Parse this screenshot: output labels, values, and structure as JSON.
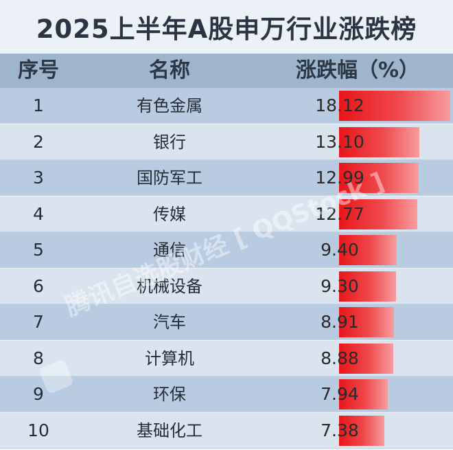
{
  "title": "2025上半年A股申万行业涨跌榜",
  "headers": {
    "rank": "序号",
    "name": "名称",
    "change": "涨跌幅（%）"
  },
  "watermark": "腾讯自选股财经 [ QQStock ]",
  "chart_data": {
    "type": "table",
    "title": "2025上半年A股申万行业涨跌榜",
    "columns": [
      "序号",
      "名称",
      "涨跌幅（%）"
    ],
    "categories": [
      "有色金属",
      "银行",
      "国防军工",
      "传媒",
      "通信",
      "机械设备",
      "汽车",
      "计算机",
      "环保",
      "基础化工"
    ],
    "rows": [
      {
        "rank": "1",
        "name": "有色金属",
        "change": "18.12",
        "value": 18.12
      },
      {
        "rank": "2",
        "name": "银行",
        "change": "13.10",
        "value": 13.1
      },
      {
        "rank": "3",
        "name": "国防军工",
        "change": "12.99",
        "value": 12.99
      },
      {
        "rank": "4",
        "name": "传媒",
        "change": "12.77",
        "value": 12.77
      },
      {
        "rank": "5",
        "name": "通信",
        "change": "9.40",
        "value": 9.4
      },
      {
        "rank": "6",
        "name": "机械设备",
        "change": "9.30",
        "value": 9.3
      },
      {
        "rank": "7",
        "name": "汽车",
        "change": "8.91",
        "value": 8.91
      },
      {
        "rank": "8",
        "name": "计算机",
        "change": "8.88",
        "value": 8.88
      },
      {
        "rank": "9",
        "name": "环保",
        "change": "7.94",
        "value": 7.94
      },
      {
        "rank": "10",
        "name": "基础化工",
        "change": "7.38",
        "value": 7.38
      }
    ],
    "bar_color": "#e8161a"
  }
}
